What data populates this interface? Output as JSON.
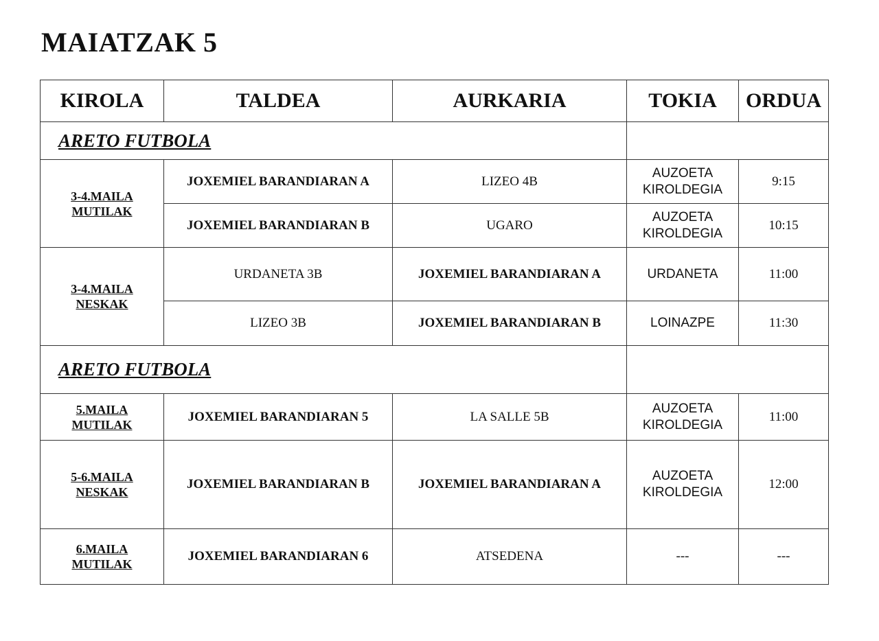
{
  "title": "MAIATZAK 5",
  "headers": [
    "KIROLA",
    "TALDEA",
    "AURKARIA",
    "TOKIA",
    "ORDUA"
  ],
  "sections": [
    {
      "title": "ARETO FUTBOLA",
      "groups": [
        {
          "category": [
            "3-4.MAILA",
            "MUTILAK"
          ],
          "matches": [
            {
              "team": "JOXEMIEL BARANDIARAN A",
              "opponent": "LIZEO 4B",
              "place": [
                "AUZOETA",
                "KIROLDEGIA"
              ],
              "time": "9:15"
            },
            {
              "team": "JOXEMIEL BARANDIARAN B",
              "opponent": "UGARO",
              "place": [
                "AUZOETA",
                "KIROLDEGIA"
              ],
              "time": "10:15"
            }
          ]
        },
        {
          "category": [
            "3-4.MAILA",
            "NESKAK"
          ],
          "matches": [
            {
              "team": "URDANETA 3B",
              "opponent": "JOXEMIEL BARANDIARAN A",
              "place": [
                "URDANETA"
              ],
              "time": "11:00"
            },
            {
              "team": "LIZEO 3B",
              "opponent": "JOXEMIEL BARANDIARAN B",
              "place": [
                "LOINAZPE"
              ],
              "time": "11:30"
            }
          ]
        }
      ]
    },
    {
      "title": "ARETO FUTBOLA",
      "groups": [
        {
          "category": [
            "5.MAILA",
            "MUTILAK"
          ],
          "matches": [
            {
              "team": "JOXEMIEL BARANDIARAN 5",
              "opponent": "LA SALLE 5B",
              "place": [
                "AUZOETA",
                "KIROLDEGIA"
              ],
              "time": "11:00"
            }
          ]
        },
        {
          "category": [
            "5-6.MAILA",
            "NESKAK"
          ],
          "matches": [
            {
              "team": "JOXEMIEL BARANDIARAN B",
              "opponent": "JOXEMIEL BARANDIARAN A",
              "place": [
                "AUZOETA",
                "KIROLDEGIA"
              ],
              "time": "12:00"
            }
          ]
        },
        {
          "category": [
            "6.MAILA",
            "MUTILAK"
          ],
          "matches": [
            {
              "team": "JOXEMIEL BARANDIARAN 6",
              "opponent": "ATSEDENA",
              "place": [
                "---"
              ],
              "time": "---"
            }
          ]
        }
      ]
    }
  ]
}
